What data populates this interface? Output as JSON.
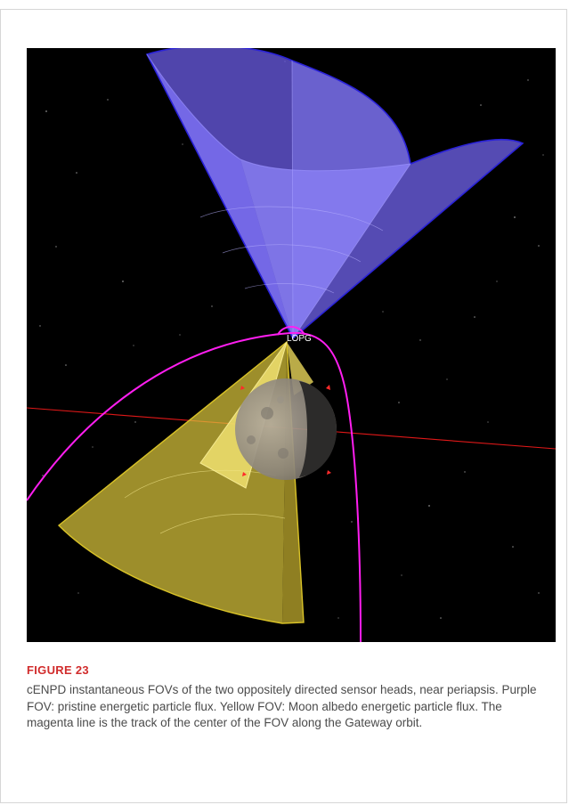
{
  "figure": {
    "label": "FIGURE 23",
    "caption": "cENPD instantaneous FOVs of the two oppositely directed sensor heads, near periapsis. Purple FOV: pristine energetic particle flux. Yellow FOV: Moon albedo energetic particle flux. The magenta line is the track of the center of the FOV along the Gateway orbit.",
    "image": {
      "spacecraft_label": "LOPG",
      "colors": {
        "background": "#000000",
        "purple_fov": "#7b6ef0",
        "purple_edge": "#2a22d8",
        "yellow_fov": "#e6d34a",
        "yellow_edge": "#d9c227",
        "magenta_track": "#ff1ef0",
        "red_axis": "#e01818",
        "moon": "#8a8580"
      }
    }
  }
}
